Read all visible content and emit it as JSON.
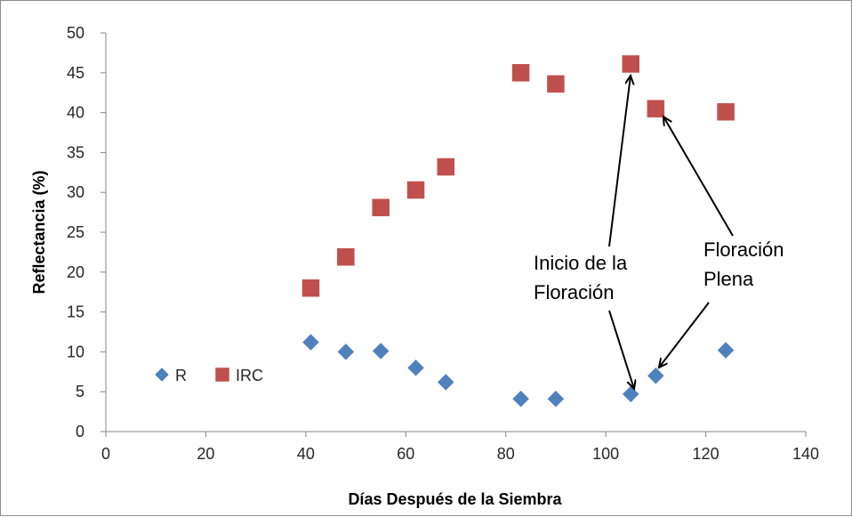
{
  "chart_data": {
    "type": "scatter",
    "title": "",
    "xlabel": "Días Después de la Siembra",
    "ylabel": "Reflectancia (%)",
    "xlim": [
      0,
      140
    ],
    "ylim": [
      0,
      50
    ],
    "x_ticks": [
      0,
      20,
      40,
      60,
      80,
      100,
      120,
      140
    ],
    "y_ticks": [
      0,
      5,
      10,
      15,
      20,
      25,
      30,
      35,
      40,
      45,
      50
    ],
    "grid": false,
    "legend_position": "left",
    "series": [
      {
        "name": "R",
        "marker": "diamond",
        "color": "#4F81BD",
        "x": [
          41,
          48,
          55,
          62,
          68,
          83,
          90,
          105,
          110,
          124
        ],
        "y": [
          11.2,
          10.0,
          10.1,
          8.0,
          6.2,
          4.1,
          4.1,
          4.7,
          7.0,
          10.2
        ]
      },
      {
        "name": "IRC",
        "marker": "square",
        "color": "#C0504D",
        "x": [
          41,
          48,
          55,
          62,
          68,
          83,
          90,
          105,
          110,
          124
        ],
        "y": [
          18.0,
          21.9,
          28.1,
          30.3,
          33.2,
          45.0,
          43.6,
          46.1,
          40.5,
          40.1
        ]
      }
    ],
    "annotations": [
      {
        "lines": [
          "Inicio de la",
          "Floración"
        ],
        "targets": [
          {
            "x": 105,
            "y": 46.1
          },
          {
            "x": 105,
            "y": 4.7
          }
        ]
      },
      {
        "lines": [
          "Floración",
          "Plena"
        ],
        "targets": [
          {
            "x": 110,
            "y": 40.5
          },
          {
            "x": 110,
            "y": 7.0
          }
        ]
      }
    ]
  }
}
